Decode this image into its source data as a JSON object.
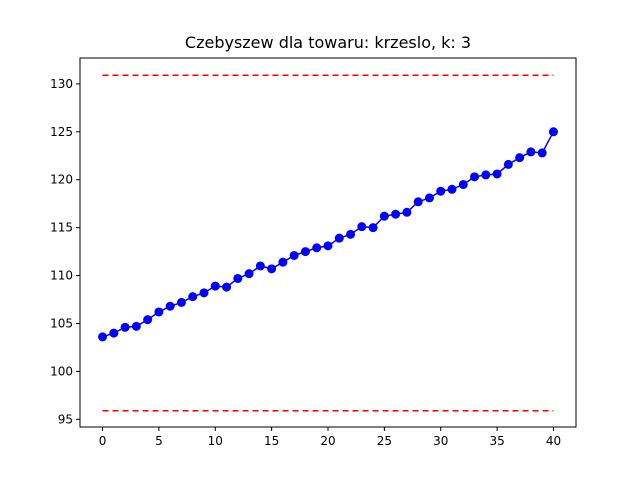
{
  "chart_data": {
    "type": "line",
    "title": "Czebyszew dla towaru: krzeslo, k: 3",
    "xlabel": "",
    "ylabel": "",
    "xlim": [
      -2,
      42
    ],
    "ylim": [
      94.2,
      132.7
    ],
    "xticks": [
      0,
      5,
      10,
      15,
      20,
      25,
      30,
      35,
      40
    ],
    "yticks": [
      95,
      100,
      105,
      110,
      115,
      120,
      125,
      130
    ],
    "grid": false,
    "series": [
      {
        "color": "#0000ff",
        "marker": "circle",
        "x": [
          0,
          1,
          2,
          3,
          4,
          5,
          6,
          7,
          8,
          9,
          10,
          11,
          12,
          13,
          14,
          15,
          16,
          17,
          18,
          19,
          20,
          21,
          22,
          23,
          24,
          25,
          26,
          27,
          28,
          29,
          30,
          31,
          32,
          33,
          34,
          35,
          36,
          37,
          38,
          39,
          40
        ],
        "values": [
          103.6,
          104.0,
          104.6,
          104.7,
          105.4,
          106.2,
          106.8,
          107.2,
          107.8,
          108.2,
          108.9,
          108.8,
          109.7,
          110.2,
          111.0,
          110.7,
          111.4,
          112.1,
          112.5,
          112.9,
          113.1,
          113.9,
          114.3,
          115.1,
          115.0,
          116.2,
          116.4,
          116.6,
          117.7,
          118.1,
          118.8,
          119.0,
          119.5,
          120.3,
          120.5,
          120.6,
          121.6,
          122.3,
          122.9,
          122.8,
          125.0
        ]
      }
    ],
    "bounds": {
      "color": "#ff0000",
      "style": "dashed",
      "x": [
        0,
        40
      ],
      "upper": 130.9,
      "lower": 95.9
    }
  }
}
